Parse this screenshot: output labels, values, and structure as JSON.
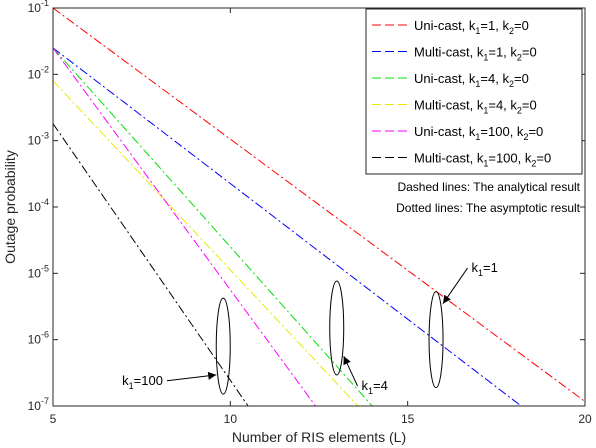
{
  "chart_data": {
    "type": "line",
    "xlabel": "Number of RIS elements (L)",
    "ylabel": "Outage probability",
    "xlim": [
      5,
      20
    ],
    "ylim": [
      1e-07,
      0.1
    ],
    "yscale": "log",
    "grid": false,
    "legend_position": "top-right",
    "x_ticks": [
      "5",
      "10",
      "15",
      "20"
    ],
    "y_ticks": [
      {
        "base": "10",
        "exp": "-1"
      },
      {
        "base": "10",
        "exp": "-2"
      },
      {
        "base": "10",
        "exp": "-3"
      },
      {
        "base": "10",
        "exp": "-4"
      },
      {
        "base": "10",
        "exp": "-5"
      },
      {
        "base": "10",
        "exp": "-6"
      },
      {
        "base": "10",
        "exp": "-7"
      }
    ],
    "series": [
      {
        "name": "Uni-cast, k1=1, k2=0",
        "legend_parts": [
          "Uni-cast, k",
          "1",
          "=1, k",
          "2",
          "=0"
        ],
        "color": "#ff0000",
        "points": [
          [
            5,
            0.1
          ],
          [
            20,
            1.17e-07
          ]
        ]
      },
      {
        "name": "Multi-cast, k1=1, k2=0",
        "legend_parts": [
          "Multi-cast, k",
          "1",
          "=1, k",
          "2",
          "=0"
        ],
        "color": "#0000ff",
        "points": [
          [
            5,
            0.025
          ],
          [
            18.2,
            1e-07
          ]
        ]
      },
      {
        "name": "Uni-cast, k1=4, k2=0",
        "legend_parts": [
          "Uni-cast, k",
          "1",
          "=4, k",
          "2",
          "=0"
        ],
        "color": "#00e000",
        "points": [
          [
            5,
            0.025
          ],
          [
            14,
            1e-07
          ]
        ]
      },
      {
        "name": "Multi-cast, k1=4, k2=0",
        "legend_parts": [
          "Multi-cast, k",
          "1",
          "=4, k",
          "2",
          "=0"
        ],
        "color": "#e8e800",
        "points": [
          [
            5,
            0.008
          ],
          [
            13.6,
            1e-07
          ]
        ]
      },
      {
        "name": "Uni-cast, k1=100, k2=0",
        "legend_parts": [
          "Uni-cast, k",
          "1",
          "=100, k",
          "2",
          "=0"
        ],
        "color": "#ff00ff",
        "points": [
          [
            5,
            0.025
          ],
          [
            12.4,
            1e-07
          ]
        ]
      },
      {
        "name": "Multi-cast, k1=100, k2=0",
        "legend_parts": [
          "Multi-cast, k",
          "1",
          "=100, k",
          "2",
          "=0"
        ],
        "color": "#000000",
        "points": [
          [
            5,
            0.0018
          ],
          [
            10.5,
            1e-07
          ]
        ]
      }
    ],
    "notes": [
      "Dashed lines: The analytical result",
      "Dotted lines: The asymptotic result"
    ],
    "annotations": [
      {
        "label_main": "k",
        "label_sub": "1",
        "label_rest": "=1",
        "ellipse_center": [
          15.8,
          1e-06
        ],
        "text_at": [
          16.8,
          1.2e-05
        ]
      },
      {
        "label_main": "k",
        "label_sub": "1",
        "label_rest": "=4",
        "ellipse_center": [
          13.0,
          1.5e-06
        ],
        "text_at": [
          13.7,
          2e-07
        ]
      },
      {
        "label_main": "k",
        "label_sub": "1",
        "label_rest": "=100",
        "ellipse_center": [
          9.8,
          8e-07
        ],
        "text_at": [
          8.1,
          2.4e-07
        ]
      }
    ]
  }
}
